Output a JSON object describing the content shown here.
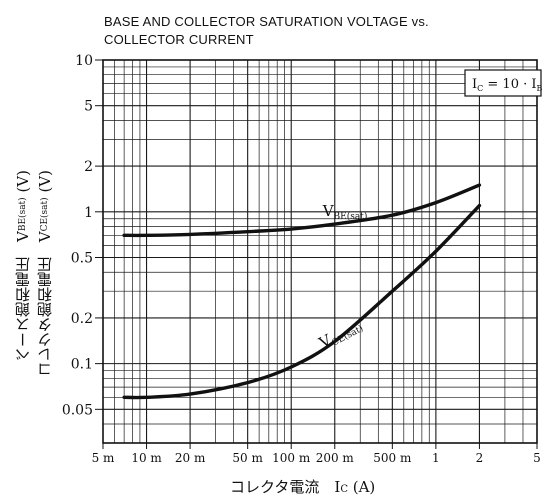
{
  "chart_data": {
    "type": "line",
    "title": "BASE AND COLLECTOR SATURATION VOLTAGE vs.",
    "subtitle": "COLLECTOR CURRENT",
    "xlabel": "コレクタ電流　I",
    "xlabel_sub": "C",
    "xlabel_unit": " (A)",
    "ylabel_1": "ベース飽和電圧　V",
    "ylabel_1_sub": "BE(sat)",
    "ylabel_1_unit": "  (V)",
    "ylabel_2": "コレクタ飽和電圧　V",
    "ylabel_2_sub": "CE(sat)",
    "ylabel_2_unit": "  (V)",
    "x_scale": "log",
    "y_scale": "log",
    "xlim": [
      0.005,
      5
    ],
    "ylim": [
      0.03,
      10
    ],
    "grid": true,
    "x_ticks": [
      {
        "value": 0.005,
        "label": "5 m"
      },
      {
        "value": 0.01,
        "label": "10 m"
      },
      {
        "value": 0.02,
        "label": "20 m"
      },
      {
        "value": 0.05,
        "label": "50 m"
      },
      {
        "value": 0.1,
        "label": "100 m"
      },
      {
        "value": 0.2,
        "label": "200 m"
      },
      {
        "value": 0.5,
        "label": "500 m"
      },
      {
        "value": 1,
        "label": "1"
      },
      {
        "value": 2,
        "label": "2"
      },
      {
        "value": 5,
        "label": "5"
      }
    ],
    "y_ticks": [
      {
        "value": 10,
        "label": "10"
      },
      {
        "value": 5,
        "label": "5"
      },
      {
        "value": 2,
        "label": "2"
      },
      {
        "value": 1,
        "label": "1"
      },
      {
        "value": 0.5,
        "label": "0.5"
      },
      {
        "value": 0.2,
        "label": "0.2"
      },
      {
        "value": 0.1,
        "label": "0.1"
      },
      {
        "value": 0.05,
        "label": "0.05"
      }
    ],
    "annotation": "I",
    "annotation_sub1": "C",
    "annotation_mid": " = 10 · I",
    "annotation_sub2": "B",
    "series": [
      {
        "name": "V",
        "name_sub": "BE(sat)",
        "x": [
          0.007,
          0.01,
          0.02,
          0.05,
          0.1,
          0.2,
          0.5,
          1,
          2
        ],
        "y": [
          0.7,
          0.7,
          0.71,
          0.74,
          0.77,
          0.83,
          0.95,
          1.15,
          1.5
        ]
      },
      {
        "name": "V",
        "name_sub": "CE(sat)",
        "x": [
          0.007,
          0.01,
          0.02,
          0.05,
          0.1,
          0.2,
          0.5,
          1,
          2
        ],
        "y": [
          0.06,
          0.06,
          0.063,
          0.075,
          0.095,
          0.14,
          0.3,
          0.55,
          1.1
        ]
      }
    ]
  }
}
